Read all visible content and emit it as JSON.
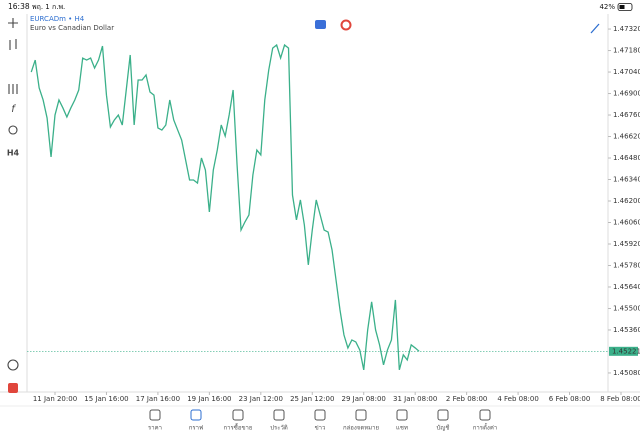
{
  "status_bar": {
    "time": "16:38",
    "date": "พฤ. 1 ก.พ.",
    "battery": "42%"
  },
  "symbol": {
    "name": "EURCADm • H4",
    "description": "Euro vs Canadian Dollar"
  },
  "toolbar": {
    "timeframe": "H4"
  },
  "chart_data": {
    "type": "line",
    "color": "#3bb08a",
    "categories": [
      null,
      null,
      null,
      null,
      null,
      null,
      "11 Jan 20:00",
      null,
      null,
      null,
      null,
      null,
      null,
      null,
      null,
      null,
      null,
      null,
      null,
      "15 Jan 16:00",
      null,
      null,
      null,
      null,
      null,
      null,
      null,
      null,
      null,
      null,
      null,
      null,
      "17 Jan 16:00",
      null,
      null,
      null,
      null,
      null,
      null,
      null,
      null,
      null,
      null,
      null,
      null,
      "19 Jan 16:00",
      null,
      null,
      null,
      null,
      null,
      null,
      null,
      null,
      null,
      null,
      null,
      null,
      "23 Jan 12:00",
      null,
      null,
      null,
      null,
      null,
      null,
      null,
      null,
      null,
      null,
      null,
      null,
      "25 Jan 12:00",
      null,
      null,
      null,
      null,
      null,
      null,
      null,
      null,
      null,
      null,
      null,
      null,
      "29 Jan 08:00",
      null,
      null,
      null,
      null,
      null,
      null,
      null,
      null,
      null,
      null,
      null,
      null,
      "31 Jan 08:00",
      null,
      null,
      null,
      null,
      null,
      null,
      null,
      null,
      null,
      null,
      null,
      null,
      "2 Feb 08:00",
      null,
      null,
      null,
      null,
      null,
      null,
      null,
      null,
      null,
      null,
      null,
      null,
      "4 Feb 08:00",
      null,
      null,
      null,
      null,
      null,
      null,
      null,
      null,
      null,
      null,
      null,
      null,
      "6 Feb 08:00",
      null,
      null,
      null,
      null,
      null,
      null,
      null,
      null,
      null,
      null,
      null,
      null,
      "8 Feb 08:00"
    ],
    "values": [
      1.4704,
      1.47118,
      1.46936,
      1.46858,
      1.46741,
      1.46487,
      1.4676,
      1.46858,
      1.46806,
      1.46747,
      1.46806,
      1.46858,
      1.46923,
      1.47131,
      1.47118,
      1.47131,
      1.47066,
      1.47118,
      1.47209,
      1.4689,
      1.46682,
      1.46728,
      1.4676,
      1.46695,
      1.46923,
      1.47151,
      1.46695,
      1.46988,
      1.46988,
      1.47021,
      1.4691,
      1.4689,
      1.46676,
      1.46662,
      1.46695,
      1.46858,
      1.46728,
      1.46662,
      1.46597,
      1.46467,
      1.46337,
      1.46337,
      1.46317,
      1.4648,
      1.46402,
      1.46129,
      1.46402,
      1.46532,
      1.46695,
      1.46623,
      1.4676,
      1.46923,
      1.46435,
      1.46011,
      1.46064,
      1.46109,
      1.4637,
      1.46532,
      1.465,
      1.46858,
      1.47053,
      1.47196,
      1.47216,
      1.47131,
      1.47216,
      1.47196,
      1.46239,
      1.46077,
      1.46207,
      1.46044,
      1.45784,
      1.46011,
      1.46207,
      1.46109,
      1.46011,
      1.45998,
      1.45881,
      1.45686,
      1.45491,
      1.45328,
      1.45243,
      1.45295,
      1.45282,
      1.4523,
      1.451,
      1.4536,
      1.45543,
      1.4536,
      1.45263,
      1.45133,
      1.4523,
      1.45295,
      1.45556,
      1.451,
      1.45198,
      1.45165,
      1.45263,
      1.45243,
      1.45221,
      null,
      null,
      null,
      null,
      null,
      null,
      null,
      null,
      null,
      null,
      null,
      null,
      null,
      null,
      null,
      null,
      null,
      null,
      null,
      null,
      null,
      null,
      null,
      null,
      null,
      null,
      null,
      null,
      null,
      null,
      null,
      null,
      null,
      null,
      null,
      null,
      null,
      null,
      null,
      null,
      null,
      null,
      null,
      null,
      null,
      null,
      null,
      null,
      null,
      null,
      null
    ],
    "ylim": [
      1.44956,
      1.47418
    ],
    "yticks": [
      {
        "value": 1.4732,
        "label": "1.47320"
      },
      {
        "value": 1.4718,
        "label": "1.47180"
      },
      {
        "value": 1.4704,
        "label": "1.47040"
      },
      {
        "value": 1.469,
        "label": "1.46900"
      },
      {
        "value": 1.4676,
        "label": "1.46760"
      },
      {
        "value": 1.4662,
        "label": "1.46620"
      },
      {
        "value": 1.4648,
        "label": "1.46480"
      },
      {
        "value": 1.4634,
        "label": "1.46340"
      },
      {
        "value": 1.462,
        "label": "1.46200"
      },
      {
        "value": 1.4606,
        "label": "1.46060"
      },
      {
        "value": 1.4592,
        "label": "1.45920"
      },
      {
        "value": 1.4578,
        "label": "1.45780"
      },
      {
        "value": 1.4564,
        "label": "1.45640"
      },
      {
        "value": 1.455,
        "label": "1.45500"
      },
      {
        "value": 1.4536,
        "label": "1.45360"
      },
      {
        "value": 1.4508,
        "label": "1.45080"
      }
    ],
    "current_price": 1.45221
  },
  "tabs": [
    "ราคา",
    "กราฟ",
    "การซื้อขาย",
    "ประวัติ",
    "ข่าว",
    "กล่องจดหมาย",
    "แชท",
    "บัญชี",
    "การตั้งค่า"
  ]
}
